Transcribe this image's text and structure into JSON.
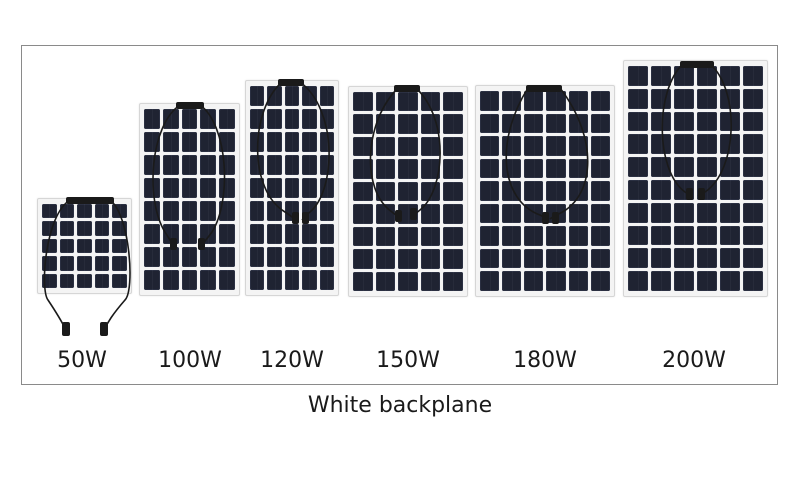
{
  "panels": [
    {
      "label": "50W",
      "cols": 5,
      "rows": 5
    },
    {
      "label": "100W",
      "cols": 5,
      "rows": 8
    },
    {
      "label": "120W",
      "cols": 5,
      "rows": 9
    },
    {
      "label": "150W",
      "cols": 5,
      "rows": 9
    },
    {
      "label": "180W",
      "cols": 6,
      "rows": 9
    },
    {
      "label": "200W",
      "cols": 6,
      "rows": 10
    }
  ],
  "caption": "White backplane",
  "colors": {
    "cell": "#1f2332",
    "backplane": "#f4f4f4",
    "cable": "#1a1a1a"
  }
}
